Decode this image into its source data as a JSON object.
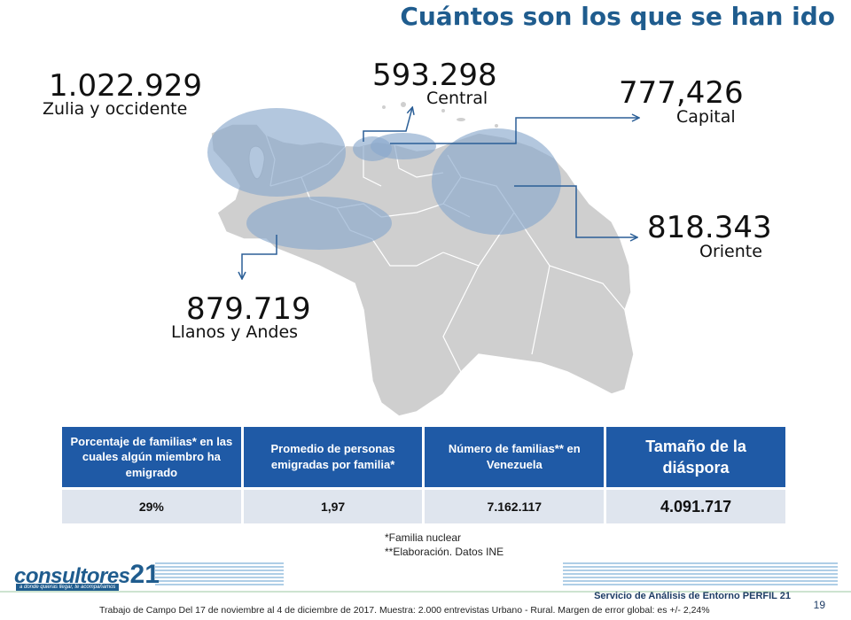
{
  "title": "Cuántos son los que se han ido",
  "regions": [
    {
      "id": "zulia",
      "value": "1.022.929",
      "name": "Zulia y occidente"
    },
    {
      "id": "central",
      "value": "593.298",
      "name": "Central"
    },
    {
      "id": "capital",
      "value": "777,426",
      "name": "Capital"
    },
    {
      "id": "oriente",
      "value": "818.343",
      "name": "Oriente"
    },
    {
      "id": "llanos",
      "value": "879.719",
      "name": "Llanos y Andes"
    }
  ],
  "map_colors": {
    "land": "#cfcfcf",
    "border": "#ffffff",
    "highlight": "#8aa9cc",
    "arrow": "#2b5f97"
  },
  "table": {
    "headers": [
      "Porcentaje de familias* en las cuales algún miembro ha emigrado",
      "Promedio de personas emigradas por familia*",
      "Número de familias** en Venezuela",
      "Tamaño de la diáspora"
    ],
    "values": [
      "29%",
      "1,97",
      "7.162.117",
      "4.091.717"
    ],
    "header_color": "#1f5aa6",
    "row_color": "#dfe5ee"
  },
  "notes": [
    "*Familia nuclear",
    "**Elaboración. Datos INE"
  ],
  "logo": {
    "word": "consultores",
    "number": "21",
    "tagline": "a donde quieras llegar, te acompañamos"
  },
  "footer": {
    "service": "Servicio de Análisis de Entorno PERFIL 21",
    "page": "19",
    "fieldwork": "Trabajo de Campo Del 17 de noviembre al 4 de diciembre de 2017. Muestra: 2.000 entrevistas Urbano - Rural. Margen de error global: es +/- 2,24%"
  }
}
